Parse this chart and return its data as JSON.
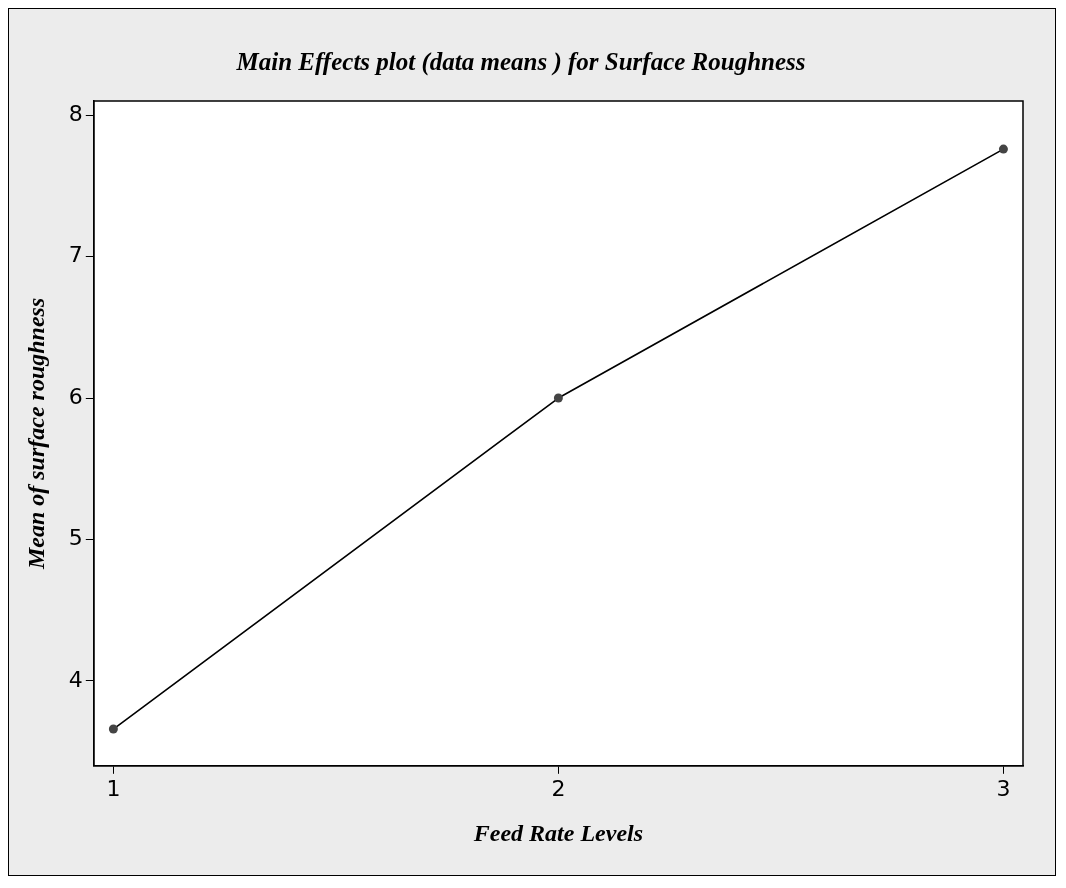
{
  "chart_data": {
    "type": "line",
    "title": "Main Effects plot (data means ) for Surface Roughness",
    "xlabel": "Feed Rate Levels",
    "ylabel": "Mean of surface roughness",
    "x": [
      1,
      2,
      3
    ],
    "values": [
      3.66,
      6.0,
      7.76
    ],
    "color": "#000000",
    "marker": "circle",
    "line_style": "solid",
    "xlim": [
      0.956,
      3.044
    ],
    "xticks": [
      1,
      2,
      3
    ],
    "ylim": [
      3.4,
      8.1
    ],
    "yticks": [
      4,
      5,
      6,
      7,
      8
    ],
    "grid": false,
    "legend": false
  }
}
